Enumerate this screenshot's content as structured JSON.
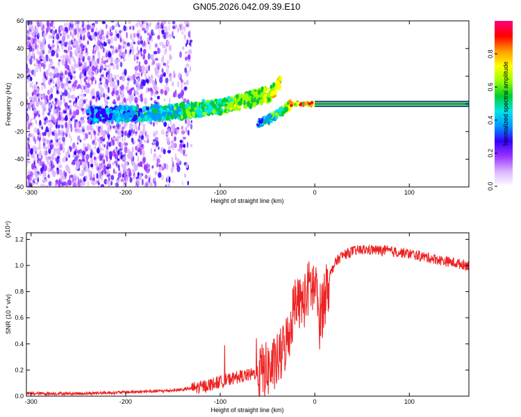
{
  "title": "GN05.2026.042.09.39.E10",
  "chart_data": [
    {
      "type": "heatmap",
      "title": "GN05.2026.042.09.39.E10",
      "xlabel": "Height of straight line (km)",
      "ylabel": "Frequency (Hz)",
      "xlim": [
        -305,
        163
      ],
      "ylim": [
        -60,
        60
      ],
      "xticks": [
        -300,
        -200,
        -100,
        0,
        100
      ],
      "yticks": [
        60,
        40,
        20,
        0,
        -20,
        -40,
        -60
      ],
      "colorbar": {
        "label": "Normalized spectral amplitude",
        "range": [
          0.0,
          1.0
        ],
        "ticks": [
          0.0,
          0.2,
          0.4,
          0.6,
          0.8
        ],
        "colors": [
          "#ffffff",
          "#d9b3ff",
          "#9933ff",
          "#3300ff",
          "#0099ff",
          "#00e6e6",
          "#00cc33",
          "#99ff00",
          "#ffff00",
          "#ff9900",
          "#ff0000",
          "#ff0080"
        ]
      },
      "structure": {
        "noise_region_x": [
          -305,
          -130
        ],
        "branch_upper": [
          [
            -240,
            -8
          ],
          [
            -150,
            -6
          ],
          [
            -100,
            -2
          ],
          [
            -70,
            3
          ],
          [
            -45,
            8
          ],
          [
            -35,
            18
          ]
        ],
        "branch_lower": [
          [
            -60,
            -14
          ],
          [
            -45,
            -10
          ],
          [
            -35,
            -5
          ],
          [
            -25,
            0
          ]
        ],
        "line_center_freq": 0,
        "line_x": [
          0,
          163
        ]
      }
    },
    {
      "type": "line",
      "xlabel": "Height of straight line (km)",
      "ylabel": "SNR (10 * v/v)",
      "y_multiplier": "(x10⁴)",
      "xlim": [
        -305,
        163
      ],
      "ylim": [
        0,
        1.25
      ],
      "xticks": [
        -300,
        -200,
        -100,
        0,
        100
      ],
      "yticks": [
        0.0,
        0.2,
        0.4,
        0.6,
        0.8,
        1.0,
        1.2
      ],
      "color": "#ee2222",
      "series": [
        {
          "x": [
            -305,
            -250,
            -200,
            -160,
            -140,
            -120,
            -110,
            -100,
            -90,
            -80,
            -70,
            -60,
            -50,
            -45,
            -40,
            -35,
            -30,
            -25,
            -22,
            -20,
            -18,
            -15,
            -12,
            -10,
            -8,
            -5,
            0,
            5,
            10,
            15,
            20,
            25,
            30,
            40,
            50,
            60,
            80,
            100,
            120,
            140,
            163
          ],
          "y": [
            0.02,
            0.02,
            0.03,
            0.04,
            0.05,
            0.07,
            0.09,
            0.11,
            0.13,
            0.15,
            0.16,
            0.18,
            0.2,
            0.22,
            0.26,
            0.32,
            0.42,
            0.55,
            0.7,
            0.8,
            0.75,
            0.7,
            0.72,
            0.75,
            0.8,
            0.85,
            0.82,
            0.6,
            0.75,
            0.9,
            1.0,
            1.05,
            1.08,
            1.11,
            1.12,
            1.12,
            1.11,
            1.09,
            1.06,
            1.03,
            1.0
          ]
        }
      ]
    }
  ]
}
